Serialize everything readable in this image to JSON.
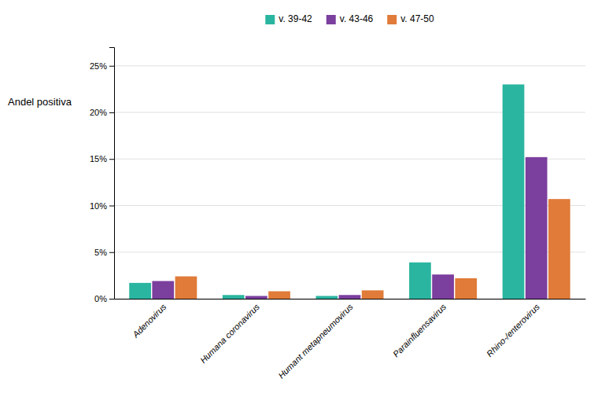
{
  "chart_data": {
    "type": "bar",
    "ylabel": "Andel positiva",
    "categories": [
      "Adenovirus",
      "Humana coronavirus",
      "Humant metapneumovirus",
      "Parainfluensavirus",
      "Rhino-/enterovirus"
    ],
    "series": [
      {
        "name": "v. 39-42",
        "color": "#2ab5a0",
        "values": [
          0.017,
          0.004,
          0.003,
          0.039,
          0.23
        ]
      },
      {
        "name": "v. 43-46",
        "color": "#7b3f9e",
        "values": [
          0.019,
          0.003,
          0.004,
          0.026,
          0.152
        ]
      },
      {
        "name": "v. 47-50",
        "color": "#e07b39",
        "values": [
          0.024,
          0.008,
          0.009,
          0.022,
          0.107
        ]
      }
    ],
    "ylim": [
      0,
      0.27
    ],
    "yticks": [
      {
        "value": 0.0,
        "label": "0%"
      },
      {
        "value": 0.05,
        "label": "5%"
      },
      {
        "value": 0.1,
        "label": "10%"
      },
      {
        "value": 0.15,
        "label": "15%"
      },
      {
        "value": 0.2,
        "label": "20%"
      },
      {
        "value": 0.25,
        "label": "25%"
      }
    ],
    "grid": true,
    "legend": "top"
  }
}
